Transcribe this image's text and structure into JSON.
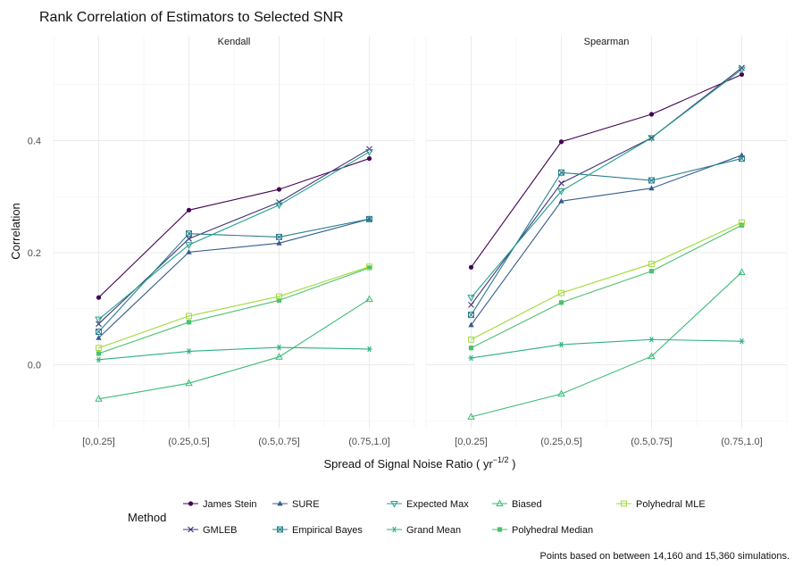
{
  "chart_data": {
    "type": "line",
    "title": "Rank Correlation of Estimators to Selected SNR",
    "xlabel": "Spread of Signal Noise Ratio",
    "xlabel_unit_base": "yr",
    "xlabel_unit_exp": "−1/2",
    "ylabel": "Correlation",
    "caption": "Points based on between 14,160 and 15,360 simulations.",
    "legend_title": "Method",
    "grid": true,
    "legend_position": "bottom",
    "categories": [
      "[0,0.25]",
      "(0.25,0.5]",
      "(0.5,0.75]",
      "(0.75,1.0]"
    ],
    "y_ticks": [
      0.0,
      0.2,
      0.4
    ],
    "y_tick_labels": [
      "0.0",
      "0.2",
      "0.4"
    ],
    "ylim": [
      -0.1,
      0.56
    ],
    "panels": [
      {
        "label": "Kendall",
        "series": [
          {
            "name": "James Stein",
            "color": "#440154",
            "marker": "circle",
            "values": [
              0.12,
              0.276,
              0.313,
              0.368
            ]
          },
          {
            "name": "GMLEB",
            "color": "#46337e",
            "marker": "x",
            "values": [
              0.073,
              0.225,
              0.29,
              0.385
            ]
          },
          {
            "name": "SURE",
            "color": "#365c8d",
            "marker": "triangle",
            "values": [
              0.048,
              0.201,
              0.217,
              0.26
            ]
          },
          {
            "name": "Empirical Bayes",
            "color": "#277f8e",
            "marker": "square-x",
            "values": [
              0.059,
              0.234,
              0.228,
              0.26
            ]
          },
          {
            "name": "Expected Max",
            "color": "#1fa187",
            "marker": "triangle-down",
            "values": [
              0.081,
              0.214,
              0.285,
              0.38
            ]
          },
          {
            "name": "Grand Mean",
            "color": "#2db27d",
            "marker": "asterisk",
            "values": [
              0.009,
              0.024,
              0.031,
              0.028
            ]
          },
          {
            "name": "Biased",
            "color": "#3bbb76",
            "marker": "triangle-open",
            "values": [
              -0.061,
              -0.033,
              0.014,
              0.117
            ]
          },
          {
            "name": "Polyhedral Median",
            "color": "#4ac16d",
            "marker": "square",
            "values": [
              0.02,
              0.076,
              0.115,
              0.173
            ]
          },
          {
            "name": "Polyhedral MLE",
            "color": "#a0da39",
            "marker": "square-open",
            "values": [
              0.03,
              0.087,
              0.122,
              0.175
            ]
          }
        ]
      },
      {
        "label": "Spearman",
        "series": [
          {
            "name": "James Stein",
            "color": "#440154",
            "marker": "circle",
            "values": [
              0.174,
              0.398,
              0.447,
              0.518
            ]
          },
          {
            "name": "GMLEB",
            "color": "#46337e",
            "marker": "x",
            "values": [
              0.107,
              0.324,
              0.405,
              0.53
            ]
          },
          {
            "name": "SURE",
            "color": "#365c8d",
            "marker": "triangle",
            "values": [
              0.071,
              0.292,
              0.315,
              0.374
            ]
          },
          {
            "name": "Empirical Bayes",
            "color": "#277f8e",
            "marker": "square-x",
            "values": [
              0.089,
              0.343,
              0.329,
              0.368
            ]
          },
          {
            "name": "Expected Max",
            "color": "#1fa187",
            "marker": "triangle-down",
            "values": [
              0.12,
              0.31,
              0.405,
              0.527
            ]
          },
          {
            "name": "Grand Mean",
            "color": "#2db27d",
            "marker": "asterisk",
            "values": [
              0.012,
              0.036,
              0.045,
              0.042
            ]
          },
          {
            "name": "Biased",
            "color": "#3bbb76",
            "marker": "triangle-open",
            "values": [
              -0.093,
              -0.052,
              0.015,
              0.165
            ]
          },
          {
            "name": "Polyhedral Median",
            "color": "#4ac16d",
            "marker": "square",
            "values": [
              0.03,
              0.111,
              0.167,
              0.249
            ]
          },
          {
            "name": "Polyhedral MLE",
            "color": "#a0da39",
            "marker": "square-open",
            "values": [
              0.045,
              0.128,
              0.18,
              0.254
            ]
          }
        ]
      }
    ]
  }
}
